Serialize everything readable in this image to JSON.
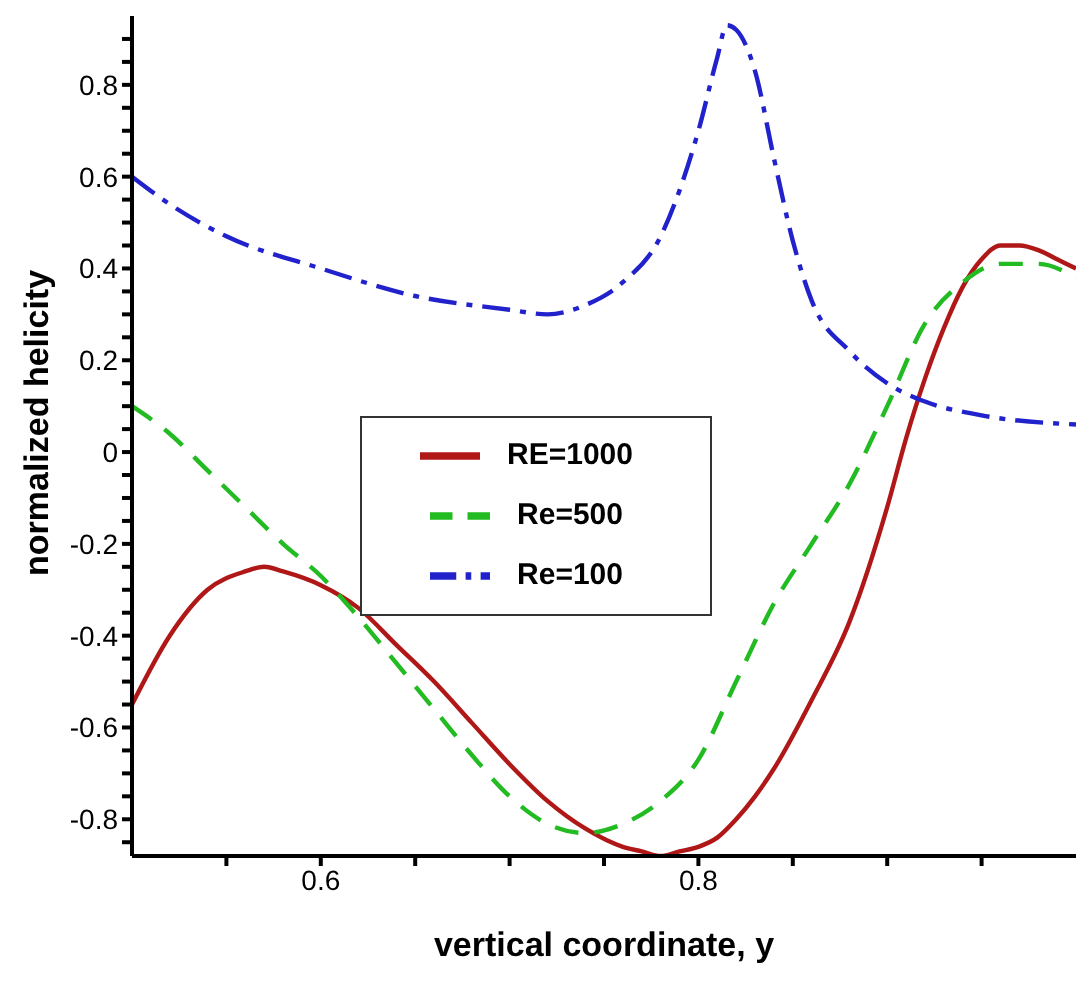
{
  "chart_data": {
    "type": "line",
    "xlabel": "vertical coordinate, y",
    "ylabel": "normalized helicity",
    "xlim": [
      0.5,
      1.0
    ],
    "ylim": [
      -0.88,
      0.95
    ],
    "xticks": [
      {
        "value": 0.55,
        "label": null
      },
      0.6,
      {
        "value": 0.65,
        "label": null
      },
      {
        "value": 0.7,
        "label": null
      },
      {
        "value": 0.75,
        "label": null
      },
      0.8,
      {
        "value": 0.85,
        "label": null
      },
      {
        "value": 0.9,
        "label": null
      },
      {
        "value": 0.95,
        "label": null
      }
    ],
    "yticks": [
      {
        "value": -0.85,
        "label": null
      },
      -0.8,
      {
        "value": -0.75,
        "label": null
      },
      {
        "value": -0.7,
        "label": null
      },
      {
        "value": -0.65,
        "label": null
      },
      -0.6,
      {
        "value": -0.55,
        "label": null
      },
      {
        "value": -0.5,
        "label": null
      },
      {
        "value": -0.45,
        "label": null
      },
      -0.4,
      {
        "value": -0.35,
        "label": null
      },
      {
        "value": -0.3,
        "label": null
      },
      {
        "value": -0.25,
        "label": null
      },
      -0.2,
      {
        "value": -0.15,
        "label": null
      },
      {
        "value": -0.1,
        "label": null
      },
      {
        "value": -0.05,
        "label": null
      },
      0,
      {
        "value": 0.05,
        "label": null
      },
      {
        "value": 0.1,
        "label": null
      },
      {
        "value": 0.15,
        "label": null
      },
      0.2,
      {
        "value": 0.25,
        "label": null
      },
      {
        "value": 0.3,
        "label": null
      },
      {
        "value": 0.35,
        "label": null
      },
      0.4,
      {
        "value": 0.45,
        "label": null
      },
      {
        "value": 0.5,
        "label": null
      },
      {
        "value": 0.55,
        "label": null
      },
      0.6,
      {
        "value": 0.65,
        "label": null
      },
      {
        "value": 0.7,
        "label": null
      },
      {
        "value": 0.75,
        "label": null
      },
      0.8,
      {
        "value": 0.85,
        "label": null
      },
      {
        "value": 0.9,
        "label": null
      }
    ],
    "grid": false,
    "legend": "center",
    "marker": "none",
    "series": [
      {
        "name": "RE=1000",
        "color": "#b01818",
        "line_style": "solid",
        "x": [
          0.5,
          0.52,
          0.54,
          0.56,
          0.57,
          0.58,
          0.6,
          0.62,
          0.64,
          0.66,
          0.68,
          0.7,
          0.72,
          0.74,
          0.76,
          0.77,
          0.78,
          0.79,
          0.8,
          0.81,
          0.82,
          0.83,
          0.84,
          0.86,
          0.88,
          0.9,
          0.91,
          0.92,
          0.93,
          0.94,
          0.95,
          0.96,
          0.97,
          0.98,
          0.99,
          1.0
        ],
        "values": [
          -0.55,
          -0.4,
          -0.3,
          -0.26,
          -0.25,
          -0.26,
          -0.29,
          -0.34,
          -0.42,
          -0.5,
          -0.59,
          -0.68,
          -0.76,
          -0.82,
          -0.86,
          -0.87,
          -0.88,
          -0.87,
          -0.86,
          -0.84,
          -0.8,
          -0.75,
          -0.69,
          -0.54,
          -0.37,
          -0.12,
          0.03,
          0.16,
          0.27,
          0.36,
          0.42,
          0.45,
          0.45,
          0.44,
          0.42,
          0.4
        ]
      },
      {
        "name": "Re=500",
        "color": "#22bb22",
        "line_style": "dashed",
        "x": [
          0.5,
          0.52,
          0.54,
          0.56,
          0.58,
          0.6,
          0.62,
          0.64,
          0.66,
          0.68,
          0.7,
          0.72,
          0.74,
          0.76,
          0.78,
          0.8,
          0.82,
          0.84,
          0.86,
          0.88,
          0.9,
          0.92,
          0.94,
          0.96,
          0.98,
          1.0
        ],
        "values": [
          0.1,
          0.04,
          -0.04,
          -0.12,
          -0.2,
          -0.27,
          -0.36,
          -0.46,
          -0.56,
          -0.66,
          -0.75,
          -0.81,
          -0.83,
          -0.81,
          -0.76,
          -0.67,
          -0.5,
          -0.33,
          -0.2,
          -0.07,
          0.1,
          0.28,
          0.37,
          0.41,
          0.41,
          0.38
        ]
      },
      {
        "name": "Re=100",
        "color": "#2222cc",
        "line_style": "dashdot",
        "x": [
          0.5,
          0.52,
          0.55,
          0.6,
          0.65,
          0.7,
          0.72,
          0.74,
          0.76,
          0.78,
          0.79,
          0.8,
          0.81,
          0.815,
          0.82,
          0.83,
          0.84,
          0.85,
          0.86,
          0.88,
          0.9,
          0.92,
          0.95,
          1.0
        ],
        "values": [
          0.6,
          0.54,
          0.47,
          0.4,
          0.34,
          0.31,
          0.3,
          0.32,
          0.37,
          0.47,
          0.57,
          0.7,
          0.86,
          0.93,
          0.92,
          0.83,
          0.64,
          0.46,
          0.33,
          0.22,
          0.15,
          0.11,
          0.08,
          0.06
        ]
      }
    ]
  }
}
